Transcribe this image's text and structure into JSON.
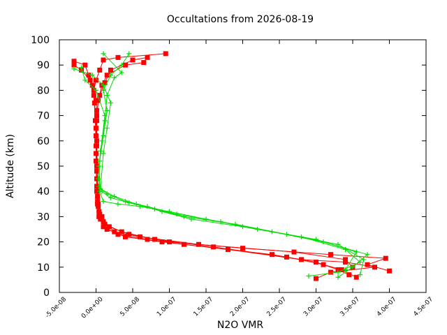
{
  "chart_data": {
    "type": "line",
    "title": "Occultations from 2026-08-19",
    "xlabel": "N2O VMR",
    "ylabel": "Altitude (km)",
    "xlim": [
      -5e-08,
      4.5e-07
    ],
    "ylim": [
      0,
      100
    ],
    "x_ticks": [
      "-5.0e-08",
      "0.0e+00",
      "5.0e-08",
      "1.0e-07",
      "1.5e-07",
      "2.0e-07",
      "2.5e-07",
      "3.0e-07",
      "3.5e-07",
      "4.0e-07",
      "4.5e-07"
    ],
    "y_ticks": [
      "0",
      "10",
      "20",
      "30",
      "40",
      "50",
      "60",
      "70",
      "80",
      "90",
      "100"
    ],
    "grid": false,
    "legend": "none",
    "series": [
      {
        "marker": "square",
        "color": "#ff0000",
        "profiles": [
          [
            [
              3.45e-07,
              7
            ],
            [
              3.3e-07,
              9
            ],
            [
              3e-07,
              12
            ],
            [
              2.4e-07,
              15
            ],
            [
              1.2e-07,
              19
            ],
            [
              7e-08,
              21
            ],
            [
              3e-08,
              23
            ],
            [
              1e-08,
              26
            ],
            [
              4e-09,
              30
            ],
            [
              2e-09,
              35
            ],
            [
              1e-09,
              40
            ],
            [
              1e-09,
              50
            ],
            [
              1e-09,
              60
            ],
            [
              1e-09,
              70
            ],
            [
              0,
              76
            ],
            [
              -3e-09,
              80
            ],
            [
              0,
              84
            ],
            [
              5e-09,
              88
            ],
            [
              1e-08,
              92
            ],
            [
              3e-08,
              93
            ],
            [
              9.5e-08,
              94.5
            ]
          ],
          [
            [
              3.55e-07,
              6
            ],
            [
              3.35e-07,
              9
            ],
            [
              3.1e-07,
              11
            ],
            [
              2.6e-07,
              14
            ],
            [
              1.6e-07,
              18
            ],
            [
              8e-08,
              21
            ],
            [
              3.5e-08,
              24
            ],
            [
              1.2e-08,
              27
            ],
            [
              5e-09,
              31
            ],
            [
              2e-09,
              36
            ],
            [
              1e-09,
              45
            ],
            [
              0,
              55
            ],
            [
              0,
              65
            ],
            [
              -2e-09,
              75
            ],
            [
              -5e-09,
              82
            ],
            [
              -1e-08,
              86
            ],
            [
              -1.5e-08,
              90
            ],
            [
              -3e-08,
              91.5
            ]
          ],
          [
            [
              3e-07,
              5.5
            ],
            [
              3.2e-07,
              8
            ],
            [
              3.8e-07,
              10
            ],
            [
              3.4e-07,
              12
            ],
            [
              2.8e-07,
              13
            ],
            [
              1.8e-07,
              17
            ],
            [
              9e-08,
              20
            ],
            [
              4e-08,
              22
            ],
            [
              1.5e-08,
              25
            ],
            [
              6e-09,
              29
            ],
            [
              3e-09,
              34
            ],
            [
              1e-09,
              42
            ],
            [
              0,
              52
            ],
            [
              0,
              62
            ],
            [
              1e-09,
              72
            ],
            [
              5e-09,
              78
            ],
            [
              1.2e-08,
              83
            ],
            [
              2e-08,
              88
            ],
            [
              5e-08,
              92
            ],
            [
              7e-08,
              93
            ]
          ],
          [
            [
              4e-07,
              8.5
            ],
            [
              3.7e-07,
              11
            ],
            [
              3.95e-07,
              13.5
            ],
            [
              3.2e-07,
              15
            ],
            [
              2e-07,
              17.5
            ],
            [
              1e-07,
              20
            ],
            [
              4.5e-08,
              23
            ],
            [
              1.8e-08,
              26
            ],
            [
              8e-09,
              30
            ],
            [
              3e-09,
              35
            ],
            [
              2e-09,
              45
            ],
            [
              1e-09,
              58
            ],
            [
              1e-09,
              68
            ],
            [
              3e-09,
              76
            ],
            [
              8e-09,
              82
            ],
            [
              1.5e-08,
              86
            ],
            [
              4e-08,
              90
            ],
            [
              6.5e-08,
              91
            ]
          ],
          [
            [
              3.5e-07,
              10
            ],
            [
              3.4e-07,
              13
            ],
            [
              2.7e-07,
              16
            ],
            [
              1.4e-07,
              19
            ],
            [
              6e-08,
              22
            ],
            [
              2.5e-08,
              24
            ],
            [
              1e-08,
              28
            ],
            [
              4e-09,
              32
            ],
            [
              2e-09,
              38
            ],
            [
              1e-09,
              48
            ],
            [
              0,
              58
            ],
            [
              -1e-09,
              68
            ],
            [
              -3e-09,
              78
            ],
            [
              -8e-09,
              84
            ],
            [
              -2e-08,
              88
            ],
            [
              -3e-08,
              90
            ]
          ]
        ]
      },
      {
        "marker": "plus",
        "color": "#00dd00",
        "profiles": [
          [
            [
              2.9e-07,
              6.5
            ],
            [
              3.3e-07,
              8
            ],
            [
              3.6e-07,
              12
            ],
            [
              3.4e-07,
              17
            ],
            [
              2.8e-07,
              22
            ],
            [
              2e-07,
              26
            ],
            [
              1.3e-07,
              29
            ],
            [
              9e-08,
              32
            ],
            [
              5.5e-08,
              35
            ],
            [
              2.5e-08,
              38
            ],
            [
              6e-09,
              41
            ],
            [
              1e-08,
              55
            ],
            [
              1.5e-08,
              65
            ],
            [
              2e-08,
              75
            ],
            [
              1e-08,
              82
            ],
            [
              -5e-09,
              86
            ],
            [
              -3e-08,
              88.5
            ]
          ],
          [
            [
              3.3e-07,
              6
            ],
            [
              3.5e-07,
              10
            ],
            [
              3.7e-07,
              15
            ],
            [
              3.1e-07,
              20
            ],
            [
              2.4e-07,
              24
            ],
            [
              1.7e-07,
              28
            ],
            [
              1.1e-07,
              31
            ],
            [
              7e-08,
              34
            ],
            [
              4e-08,
              36
            ],
            [
              1.5e-08,
              39
            ],
            [
              4e-09,
              42
            ],
            [
              5e-09,
              52
            ],
            [
              1e-08,
              62
            ],
            [
              1.5e-08,
              72
            ],
            [
              1e-08,
              80
            ],
            [
              2e-08,
              86
            ],
            [
              3.5e-08,
              90
            ],
            [
              4.5e-08,
              94.5
            ]
          ],
          [
            [
              3.6e-07,
              7
            ],
            [
              3.65e-07,
              13
            ],
            [
              3.3e-07,
              19
            ],
            [
              2.6e-07,
              23
            ],
            [
              1.9e-07,
              27
            ],
            [
              1.2e-07,
              30
            ],
            [
              8e-08,
              33
            ],
            [
              4.5e-08,
              35.5
            ],
            [
              2e-08,
              37.5
            ],
            [
              8e-09,
              40
            ],
            [
              3e-09,
              45
            ],
            [
              6e-09,
              56
            ],
            [
              1.2e-08,
              68
            ],
            [
              1.5e-08,
              78
            ],
            [
              2.5e-08,
              85
            ],
            [
              3.5e-08,
              87
            ],
            [
              1e-08,
              94.5
            ]
          ],
          [
            [
              3.4e-07,
              9
            ],
            [
              3.55e-07,
              16
            ],
            [
              3e-07,
              21
            ],
            [
              2.2e-07,
              25
            ],
            [
              1.5e-07,
              29
            ],
            [
              1e-07,
              32
            ],
            [
              6e-08,
              34
            ],
            [
              3e-08,
              35
            ],
            [
              1e-08,
              36
            ],
            [
              5e-09,
              40
            ],
            [
              4e-09,
              50
            ],
            [
              8e-09,
              60
            ],
            [
              1.2e-08,
              70
            ],
            [
              0,
              80
            ],
            [
              -1.5e-08,
              84
            ],
            [
              -2e-08,
              89
            ]
          ]
        ]
      }
    ]
  }
}
